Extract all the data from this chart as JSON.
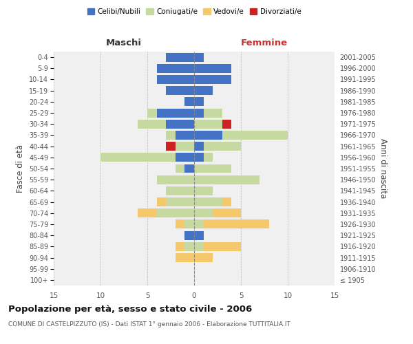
{
  "age_groups": [
    "100+",
    "95-99",
    "90-94",
    "85-89",
    "80-84",
    "75-79",
    "70-74",
    "65-69",
    "60-64",
    "55-59",
    "50-54",
    "45-49",
    "40-44",
    "35-39",
    "30-34",
    "25-29",
    "20-24",
    "15-19",
    "10-14",
    "5-9",
    "0-4"
  ],
  "birth_years": [
    "≤ 1905",
    "1906-1910",
    "1911-1915",
    "1916-1920",
    "1921-1925",
    "1926-1930",
    "1931-1935",
    "1936-1940",
    "1941-1945",
    "1946-1950",
    "1951-1955",
    "1956-1960",
    "1961-1965",
    "1966-1970",
    "1971-1975",
    "1976-1980",
    "1981-1985",
    "1986-1990",
    "1991-1995",
    "1996-2000",
    "2001-2005"
  ],
  "males": {
    "celibi": [
      0,
      0,
      0,
      0,
      1,
      0,
      0,
      0,
      0,
      0,
      1,
      2,
      0,
      2,
      3,
      4,
      1,
      3,
      4,
      4,
      3
    ],
    "coniugati": [
      0,
      0,
      0,
      1,
      0,
      1,
      4,
      3,
      3,
      4,
      1,
      8,
      2,
      1,
      3,
      1,
      0,
      0,
      0,
      0,
      0
    ],
    "vedovi": [
      0,
      0,
      2,
      1,
      0,
      1,
      2,
      1,
      0,
      0,
      0,
      0,
      0,
      0,
      0,
      0,
      0,
      0,
      0,
      0,
      0
    ],
    "divorziati": [
      0,
      0,
      0,
      0,
      0,
      0,
      0,
      0,
      0,
      0,
      0,
      0,
      1,
      0,
      0,
      0,
      0,
      0,
      0,
      0,
      0
    ]
  },
  "females": {
    "nubili": [
      0,
      0,
      0,
      0,
      1,
      0,
      0,
      0,
      0,
      0,
      0,
      1,
      1,
      3,
      0,
      1,
      1,
      2,
      4,
      4,
      1
    ],
    "coniugate": [
      0,
      0,
      0,
      1,
      0,
      1,
      2,
      3,
      2,
      7,
      4,
      1,
      4,
      7,
      3,
      2,
      0,
      0,
      0,
      0,
      0
    ],
    "vedove": [
      0,
      0,
      2,
      4,
      0,
      7,
      3,
      1,
      0,
      0,
      0,
      0,
      0,
      0,
      0,
      0,
      0,
      0,
      0,
      0,
      0
    ],
    "divorziate": [
      0,
      0,
      0,
      0,
      0,
      0,
      0,
      0,
      0,
      0,
      0,
      0,
      0,
      0,
      1,
      0,
      0,
      0,
      0,
      0,
      0
    ]
  },
  "colors": {
    "celibi": "#4472c4",
    "coniugati": "#c5d9a0",
    "vedovi": "#f5c96b",
    "divorziati": "#cc2222"
  },
  "title": "Popolazione per età, sesso e stato civile - 2006",
  "subtitle": "COMUNE DI CASTELPIZZUTO (IS) - Dati ISTAT 1° gennaio 2006 - Elaborazione TUTTITALIA.IT",
  "xlabel_left": "Maschi",
  "xlabel_right": "Femmine",
  "ylabel_left": "Fasce di età",
  "ylabel_right": "Anni di nascita",
  "xlim": 15,
  "background_color": "#f0f0f0"
}
